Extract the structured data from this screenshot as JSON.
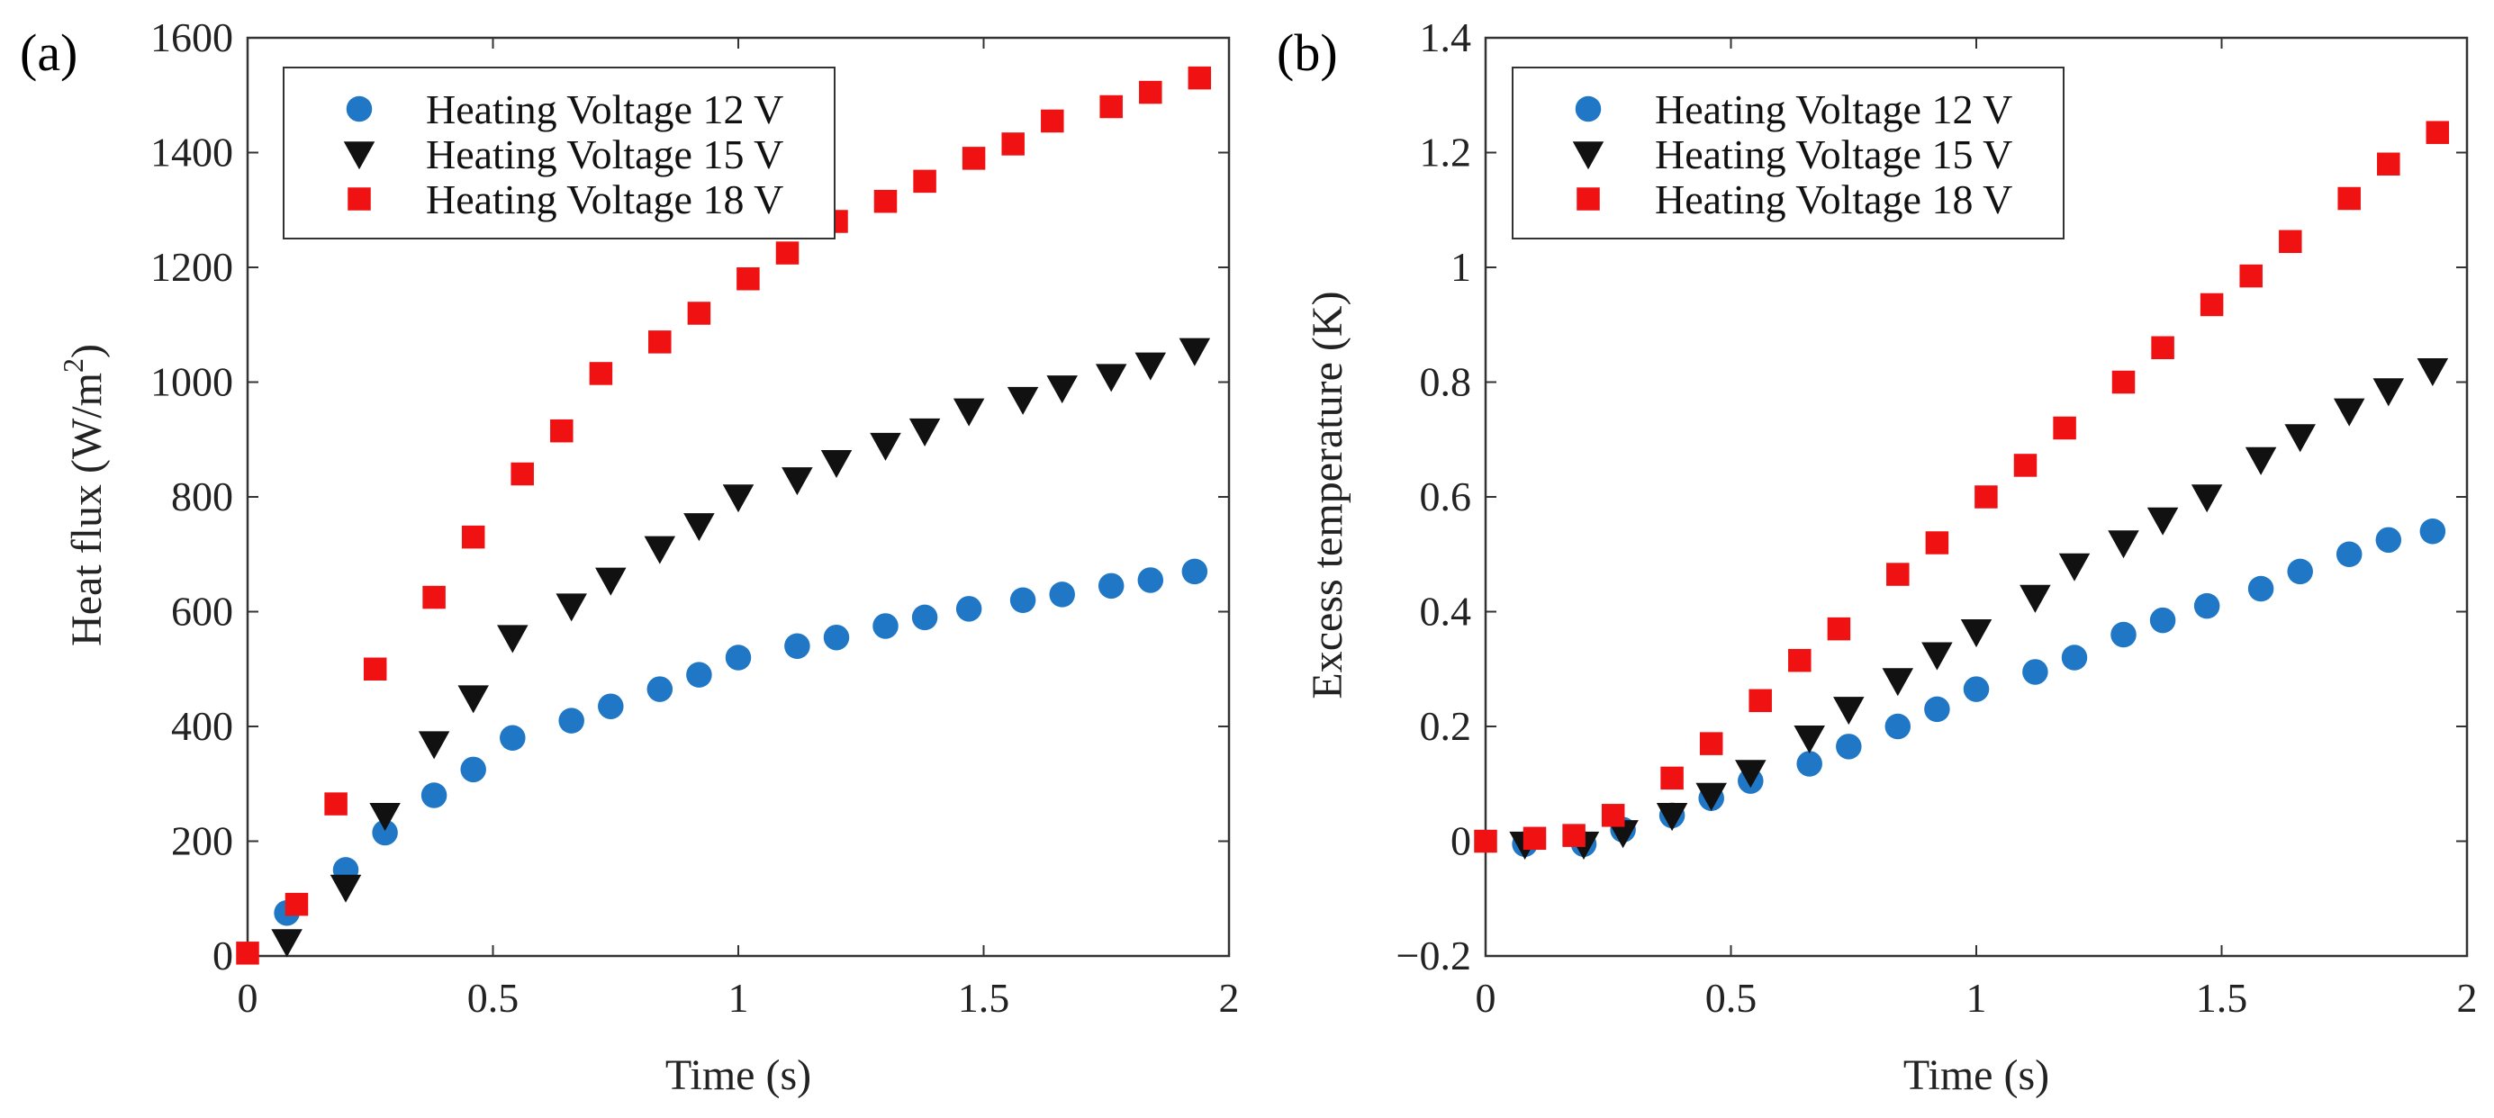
{
  "colors": {
    "series_12v": "#1F77C6",
    "series_15v": "#111111",
    "series_18v": "#F01212",
    "axis": "#333333"
  },
  "chart_data": [
    {
      "type": "scatter",
      "panel_label": "(a)",
      "title": "",
      "xlabel": "Time (s)",
      "ylabel_main": "Heat flux (W/m",
      "ylabel_sup": "2",
      "ylabel_close": ")",
      "xlim": [
        0,
        2
      ],
      "ylim": [
        0,
        1600
      ],
      "x_ticks": [
        0,
        0.5,
        1,
        1.5,
        2
      ],
      "x_tick_labels": [
        "0",
        "0.5",
        "1",
        "1.5",
        "2"
      ],
      "y_ticks": [
        0,
        200,
        400,
        600,
        800,
        1000,
        1200,
        1400,
        1600
      ],
      "y_tick_labels": [
        "0",
        "200",
        "400",
        "600",
        "800",
        "1000",
        "1200",
        "1400",
        "1600"
      ],
      "grid": false,
      "legend_position": "top-left",
      "series": [
        {
          "name": "Heating Voltage 12 V",
          "marker": "circle",
          "color_key": "series_12v",
          "x": [
            0.08,
            0.2,
            0.28,
            0.38,
            0.46,
            0.54,
            0.66,
            0.74,
            0.84,
            0.92,
            1.0,
            1.12,
            1.2,
            1.3,
            1.38,
            1.47,
            1.58,
            1.66,
            1.76,
            1.84,
            1.93
          ],
          "y": [
            75,
            150,
            215,
            280,
            325,
            380,
            410,
            435,
            465,
            490,
            520,
            540,
            555,
            575,
            590,
            605,
            620,
            630,
            645,
            655,
            670
          ]
        },
        {
          "name": "Heating Voltage 15 V",
          "marker": "triangle-down",
          "color_key": "series_15v",
          "x": [
            0.08,
            0.2,
            0.28,
            0.38,
            0.46,
            0.54,
            0.66,
            0.74,
            0.84,
            0.92,
            1.0,
            1.12,
            1.2,
            1.3,
            1.38,
            1.47,
            1.58,
            1.66,
            1.76,
            1.84,
            1.93
          ],
          "y": [
            25,
            120,
            245,
            370,
            450,
            555,
            610,
            655,
            710,
            750,
            800,
            830,
            860,
            890,
            915,
            950,
            970,
            990,
            1010,
            1030,
            1055
          ]
        },
        {
          "name": "Heating Voltage 18 V",
          "marker": "square",
          "color_key": "series_18v",
          "x": [
            0.0,
            0.1,
            0.18,
            0.26,
            0.38,
            0.46,
            0.56,
            0.64,
            0.72,
            0.84,
            0.92,
            1.02,
            1.1,
            1.2,
            1.3,
            1.38,
            1.48,
            1.56,
            1.64,
            1.76,
            1.84,
            1.94
          ],
          "y": [
            5,
            90,
            265,
            500,
            625,
            730,
            840,
            915,
            1015,
            1070,
            1120,
            1180,
            1225,
            1280,
            1315,
            1350,
            1390,
            1415,
            1455,
            1480,
            1505,
            1530
          ]
        }
      ]
    },
    {
      "type": "scatter",
      "panel_label": "(b)",
      "title": "",
      "xlabel": "Time (s)",
      "ylabel_main": "Excess temperature (K)",
      "ylabel_sup": "",
      "ylabel_close": "",
      "xlim": [
        0,
        2
      ],
      "ylim": [
        -0.2,
        1.4
      ],
      "x_ticks": [
        0,
        0.5,
        1,
        1.5,
        2
      ],
      "x_tick_labels": [
        "0",
        "0.5",
        "1",
        "1.5",
        "2"
      ],
      "y_ticks": [
        -0.2,
        0,
        0.2,
        0.4,
        0.6,
        0.8,
        1.0,
        1.2,
        1.4
      ],
      "y_tick_labels": [
        "−0.2",
        "0",
        "0.2",
        "0.4",
        "0.6",
        "0.8",
        "1",
        "1.2",
        "1.4"
      ],
      "grid": false,
      "legend_position": "top-left",
      "series": [
        {
          "name": "Heating Voltage 12 V",
          "marker": "circle",
          "color_key": "series_12v",
          "x": [
            0.08,
            0.2,
            0.28,
            0.38,
            0.46,
            0.54,
            0.66,
            0.74,
            0.84,
            0.92,
            1.0,
            1.12,
            1.2,
            1.3,
            1.38,
            1.47,
            1.58,
            1.66,
            1.76,
            1.84,
            1.93
          ],
          "y": [
            -0.005,
            -0.005,
            0.02,
            0.045,
            0.075,
            0.105,
            0.135,
            0.165,
            0.2,
            0.23,
            0.265,
            0.295,
            0.32,
            0.36,
            0.385,
            0.41,
            0.44,
            0.47,
            0.5,
            0.525,
            0.54
          ]
        },
        {
          "name": "Heating Voltage 15 V",
          "marker": "triangle-down",
          "color_key": "series_15v",
          "x": [
            0.08,
            0.2,
            0.28,
            0.38,
            0.46,
            0.54,
            0.66,
            0.74,
            0.84,
            0.92,
            1.0,
            1.12,
            1.2,
            1.3,
            1.38,
            1.47,
            1.58,
            1.66,
            1.76,
            1.84,
            1.93
          ],
          "y": [
            -0.005,
            -0.005,
            0.015,
            0.045,
            0.08,
            0.12,
            0.18,
            0.23,
            0.28,
            0.325,
            0.365,
            0.425,
            0.48,
            0.52,
            0.56,
            0.6,
            0.665,
            0.705,
            0.75,
            0.785,
            0.82
          ]
        },
        {
          "name": "Heating Voltage 18 V",
          "marker": "square",
          "color_key": "series_18v",
          "x": [
            0.0,
            0.1,
            0.18,
            0.26,
            0.38,
            0.46,
            0.56,
            0.64,
            0.72,
            0.84,
            0.92,
            1.02,
            1.1,
            1.18,
            1.3,
            1.38,
            1.48,
            1.56,
            1.64,
            1.76,
            1.84,
            1.94
          ],
          "y": [
            0.0,
            0.005,
            0.01,
            0.045,
            0.11,
            0.17,
            0.245,
            0.315,
            0.37,
            0.465,
            0.52,
            0.6,
            0.655,
            0.72,
            0.8,
            0.86,
            0.935,
            0.985,
            1.045,
            1.12,
            1.18,
            1.235
          ]
        }
      ]
    }
  ]
}
